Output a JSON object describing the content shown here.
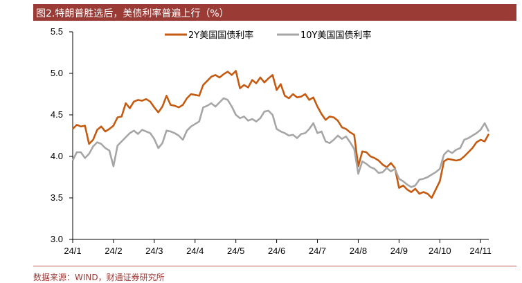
{
  "title": "图2.特朗普胜选后，美债利率普遍上行（%）",
  "source": "数据来源：WIND，财通证券研究所",
  "colors": {
    "title_bg": "#9b3b36",
    "series_2y": "#c55a11",
    "series_10y": "#a6a6a6"
  },
  "chart_data": {
    "type": "line",
    "xlabel": "",
    "ylabel": "",
    "ylim": [
      3.0,
      5.5
    ],
    "y_ticks": [
      "3.0",
      "3.5",
      "4.0",
      "4.5",
      "5.0",
      "5.5"
    ],
    "x_ticks": [
      "24/1",
      "24/2",
      "24/3",
      "24/4",
      "24/5",
      "24/6",
      "24/7",
      "24/8",
      "24/9",
      "24/10",
      "24/11"
    ],
    "legend_position": "top",
    "grid": false,
    "series": [
      {
        "name": "2Y美国国债利率",
        "color": "#c55a11",
        "values": [
          [
            "24/1",
            4.33
          ],
          [
            "24/1",
            4.38
          ],
          [
            "24/1",
            4.36
          ],
          [
            "24/1",
            4.37
          ],
          [
            "24/1",
            4.15
          ],
          [
            "24/1",
            4.2
          ],
          [
            "24/1",
            4.32
          ],
          [
            "24/1",
            4.36
          ],
          [
            "24/1",
            4.3
          ],
          [
            "24/1",
            4.33
          ],
          [
            "24/2",
            4.37
          ],
          [
            "24/2",
            4.47
          ],
          [
            "24/2",
            4.48
          ],
          [
            "24/2",
            4.64
          ],
          [
            "24/2",
            4.58
          ],
          [
            "24/2",
            4.66
          ],
          [
            "24/2",
            4.68
          ],
          [
            "24/2",
            4.67
          ],
          [
            "24/2",
            4.69
          ],
          [
            "24/2",
            4.66
          ],
          [
            "24/3",
            4.59
          ],
          [
            "24/3",
            4.53
          ],
          [
            "24/3",
            4.6
          ],
          [
            "24/3",
            4.73
          ],
          [
            "24/3",
            4.62
          ],
          [
            "24/3",
            4.61
          ],
          [
            "24/3",
            4.59
          ],
          [
            "24/3",
            4.62
          ],
          [
            "24/3",
            4.7
          ],
          [
            "24/3",
            4.75
          ],
          [
            "24/4",
            4.74
          ],
          [
            "24/4",
            4.73
          ],
          [
            "24/4",
            4.86
          ],
          [
            "24/4",
            4.91
          ],
          [
            "24/4",
            4.96
          ],
          [
            "24/4",
            4.98
          ],
          [
            "24/4",
            4.95
          ],
          [
            "24/4",
            4.99
          ],
          [
            "24/4",
            5.02
          ],
          [
            "24/4",
            4.98
          ],
          [
            "24/5",
            5.03
          ],
          [
            "24/5",
            4.82
          ],
          [
            "24/5",
            4.86
          ],
          [
            "24/5",
            4.83
          ],
          [
            "24/5",
            4.92
          ],
          [
            "24/5",
            4.88
          ],
          [
            "24/5",
            4.95
          ],
          [
            "24/5",
            4.89
          ],
          [
            "24/5",
            4.94
          ],
          [
            "24/5",
            4.98
          ],
          [
            "24/6",
            4.8
          ],
          [
            "24/6",
            4.87
          ],
          [
            "24/6",
            4.73
          ],
          [
            "24/6",
            4.7
          ],
          [
            "24/6",
            4.75
          ],
          [
            "24/6",
            4.71
          ],
          [
            "24/6",
            4.72
          ],
          [
            "24/6",
            4.75
          ],
          [
            "24/6",
            4.68
          ],
          [
            "24/6",
            4.71
          ],
          [
            "24/7",
            4.6
          ],
          [
            "24/7",
            4.51
          ],
          [
            "24/7",
            4.44
          ],
          [
            "24/7",
            4.48
          ],
          [
            "24/7",
            4.47
          ],
          [
            "24/7",
            4.43
          ],
          [
            "24/7",
            4.35
          ],
          [
            "24/7",
            4.33
          ],
          [
            "24/7",
            4.29
          ],
          [
            "24/7",
            4.26
          ],
          [
            "24/8",
            3.88
          ],
          [
            "24/8",
            4.06
          ],
          [
            "24/8",
            4.05
          ],
          [
            "24/8",
            4.0
          ],
          [
            "24/8",
            3.98
          ],
          [
            "24/8",
            3.95
          ],
          [
            "24/8",
            3.9
          ],
          [
            "24/8",
            3.87
          ],
          [
            "24/8",
            3.92
          ],
          [
            "24/8",
            3.86
          ],
          [
            "24/9",
            3.62
          ],
          [
            "24/9",
            3.65
          ],
          [
            "24/9",
            3.6
          ],
          [
            "24/9",
            3.57
          ],
          [
            "24/9",
            3.61
          ],
          [
            "24/9",
            3.55
          ],
          [
            "24/9",
            3.57
          ],
          [
            "24/9",
            3.55
          ],
          [
            "24/9",
            3.5
          ],
          [
            "24/9",
            3.6
          ],
          [
            "24/10",
            3.7
          ],
          [
            "24/10",
            3.94
          ],
          [
            "24/10",
            3.97
          ],
          [
            "24/10",
            3.96
          ],
          [
            "24/10",
            3.95
          ],
          [
            "24/10",
            3.96
          ],
          [
            "24/10",
            4.0
          ],
          [
            "24/10",
            4.05
          ],
          [
            "24/10",
            4.1
          ],
          [
            "24/10",
            4.17
          ],
          [
            "24/11",
            4.2
          ],
          [
            "24/11",
            4.18
          ],
          [
            "24/11",
            4.27
          ]
        ]
      },
      {
        "name": "10Y美国国债利率",
        "color": "#a6a6a6",
        "values": [
          [
            "24/1",
            3.95
          ],
          [
            "24/1",
            4.05
          ],
          [
            "24/1",
            4.05
          ],
          [
            "24/1",
            3.98
          ],
          [
            "24/1",
            4.03
          ],
          [
            "24/1",
            4.12
          ],
          [
            "24/1",
            4.17
          ],
          [
            "24/1",
            4.15
          ],
          [
            "24/1",
            4.1
          ],
          [
            "24/1",
            4.07
          ],
          [
            "24/2",
            3.88
          ],
          [
            "24/2",
            4.13
          ],
          [
            "24/2",
            4.18
          ],
          [
            "24/2",
            4.23
          ],
          [
            "24/2",
            4.28
          ],
          [
            "24/2",
            4.31
          ],
          [
            "24/2",
            4.27
          ],
          [
            "24/2",
            4.32
          ],
          [
            "24/2",
            4.3
          ],
          [
            "24/2",
            4.28
          ],
          [
            "24/3",
            4.21
          ],
          [
            "24/3",
            4.1
          ],
          [
            "24/3",
            4.16
          ],
          [
            "24/3",
            4.31
          ],
          [
            "24/3",
            4.3
          ],
          [
            "24/3",
            4.28
          ],
          [
            "24/3",
            4.25
          ],
          [
            "24/3",
            4.2
          ],
          [
            "24/3",
            4.31
          ],
          [
            "24/3",
            4.36
          ],
          [
            "24/4",
            4.39
          ],
          [
            "24/4",
            4.42
          ],
          [
            "24/4",
            4.59
          ],
          [
            "24/4",
            4.61
          ],
          [
            "24/4",
            4.64
          ],
          [
            "24/4",
            4.6
          ],
          [
            "24/4",
            4.65
          ],
          [
            "24/4",
            4.7
          ],
          [
            "24/4",
            4.68
          ],
          [
            "24/4",
            4.6
          ],
          [
            "24/5",
            4.5
          ],
          [
            "24/5",
            4.46
          ],
          [
            "24/5",
            4.48
          ],
          [
            "24/5",
            4.43
          ],
          [
            "24/5",
            4.45
          ],
          [
            "24/5",
            4.42
          ],
          [
            "24/5",
            4.46
          ],
          [
            "24/5",
            4.54
          ],
          [
            "24/5",
            4.55
          ],
          [
            "24/5",
            4.5
          ],
          [
            "24/6",
            4.33
          ],
          [
            "24/6",
            4.3
          ],
          [
            "24/6",
            4.28
          ],
          [
            "24/6",
            4.25
          ],
          [
            "24/6",
            4.26
          ],
          [
            "24/6",
            4.22
          ],
          [
            "24/6",
            4.27
          ],
          [
            "24/6",
            4.28
          ],
          [
            "24/6",
            4.33
          ],
          [
            "24/6",
            4.4
          ],
          [
            "24/7",
            4.28
          ],
          [
            "24/7",
            4.3
          ],
          [
            "24/7",
            4.18
          ],
          [
            "24/7",
            4.16
          ],
          [
            "24/7",
            4.2
          ],
          [
            "24/7",
            4.25
          ],
          [
            "24/7",
            4.21
          ],
          [
            "24/7",
            4.24
          ],
          [
            "24/7",
            4.17
          ],
          [
            "24/7",
            4.09
          ],
          [
            "24/8",
            3.79
          ],
          [
            "24/8",
            3.94
          ],
          [
            "24/8",
            3.91
          ],
          [
            "24/8",
            3.87
          ],
          [
            "24/8",
            3.85
          ],
          [
            "24/8",
            3.8
          ],
          [
            "24/8",
            3.81
          ],
          [
            "24/8",
            3.86
          ],
          [
            "24/8",
            3.82
          ],
          [
            "24/8",
            3.85
          ],
          [
            "24/9",
            3.73
          ],
          [
            "24/9",
            3.7
          ],
          [
            "24/9",
            3.66
          ],
          [
            "24/9",
            3.63
          ],
          [
            "24/9",
            3.65
          ],
          [
            "24/9",
            3.72
          ],
          [
            "24/9",
            3.73
          ],
          [
            "24/9",
            3.75
          ],
          [
            "24/9",
            3.78
          ],
          [
            "24/9",
            3.81
          ],
          [
            "24/10",
            3.85
          ],
          [
            "24/10",
            4.02
          ],
          [
            "24/10",
            4.07
          ],
          [
            "24/10",
            4.04
          ],
          [
            "24/10",
            4.08
          ],
          [
            "24/10",
            4.1
          ],
          [
            "24/10",
            4.2
          ],
          [
            "24/10",
            4.22
          ],
          [
            "24/10",
            4.25
          ],
          [
            "24/10",
            4.28
          ],
          [
            "24/11",
            4.32
          ],
          [
            "24/11",
            4.4
          ],
          [
            "24/11",
            4.3
          ]
        ]
      }
    ]
  }
}
